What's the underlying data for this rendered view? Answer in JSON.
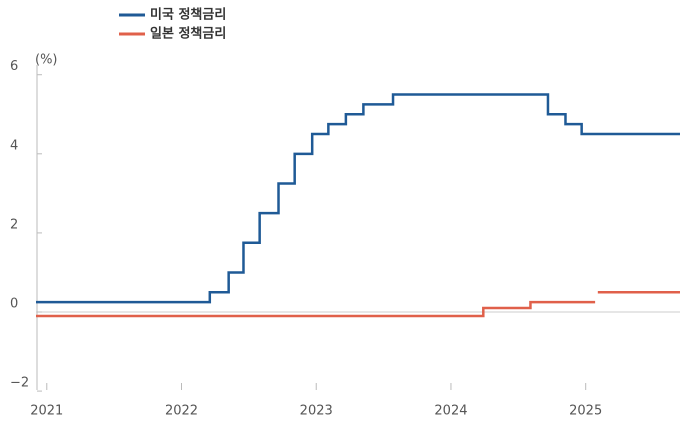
{
  "chart_data": {
    "type": "step-line",
    "y_unit_label": "(%)",
    "xlim": [
      2020.92,
      2025.7
    ],
    "xticks": [
      2021,
      2022,
      2023,
      2024,
      2025
    ],
    "ylim": [
      -2.2,
      6.6
    ],
    "yticks": [
      {
        "value": -2,
        "label": "−2"
      },
      0,
      2,
      4,
      6
    ],
    "series": [
      {
        "name": "미국 정책금리",
        "color": "#1f5a96",
        "x": [
          2020.92,
          2022.21,
          2022.35,
          2022.46,
          2022.58,
          2022.72,
          2022.84,
          2022.97,
          2023.09,
          2023.22,
          2023.35,
          2023.57,
          2024.72,
          2024.85,
          2024.97,
          2025.7
        ],
        "values": [
          0.25,
          0.5,
          1.0,
          1.75,
          2.5,
          3.25,
          4.0,
          4.5,
          4.75,
          5.0,
          5.25,
          5.5,
          5.0,
          4.75,
          4.5,
          4.5
        ]
      },
      {
        "name": "일본 정책금리",
        "color": "#e0604a",
        "x": [
          2020.92,
          2024.24,
          2024.59,
          2025.07,
          2025.08,
          2025.09,
          2025.7
        ],
        "values": [
          -0.1,
          0.1,
          0.25,
          0.25,
          null,
          0.5,
          0.5
        ]
      }
    ]
  }
}
